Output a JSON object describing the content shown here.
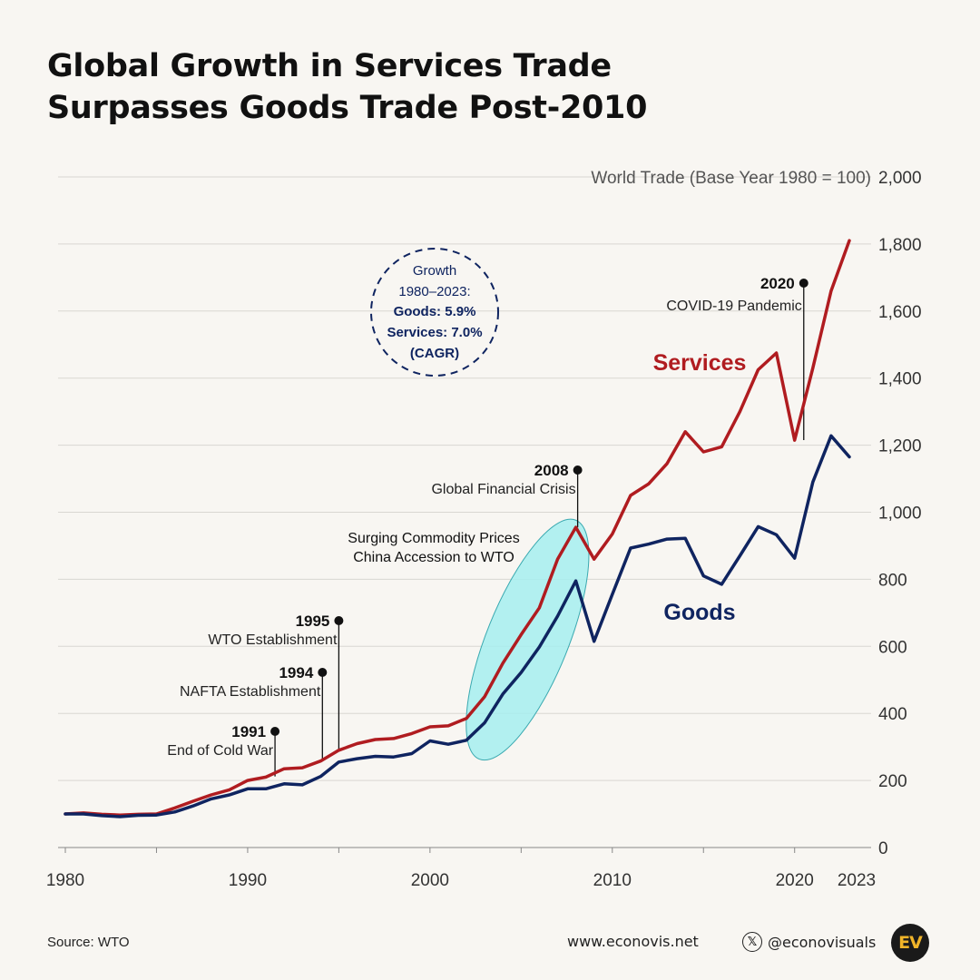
{
  "title": {
    "line1": "Global Growth in Services Trade",
    "line2": "Surpasses Goods Trade Post-2010"
  },
  "footer": {
    "source": "Source: WTO",
    "website": "www.econovis.net",
    "handle": "@econovisuals",
    "x_icon": "x-logo-icon",
    "logo_text": "EV"
  },
  "colors": {
    "services": "#b01c20",
    "goods": "#0f2460",
    "highlight": "#a6eef0",
    "grid": "#d9d7d2",
    "background": "#f8f6f2"
  },
  "chart_data": {
    "type": "line",
    "ylabel": "World Trade (Base Year 1980 = 100)",
    "ylim": [
      0,
      2000
    ],
    "yticks": [
      0,
      200,
      400,
      600,
      800,
      1000,
      1200,
      1400,
      1600,
      1800,
      2000
    ],
    "ytick_labels": [
      "0",
      "200",
      "400",
      "600",
      "800",
      "1,000",
      "1,200",
      "1,400",
      "1,600",
      "1,800",
      "2,000"
    ],
    "xlim": [
      1980,
      2023
    ],
    "xtick_labels": [
      "1980",
      "1990",
      "2000",
      "2010",
      "2020",
      "2023"
    ],
    "xticks": [
      1980,
      1990,
      2000,
      2010,
      2020,
      2023
    ],
    "grid": true,
    "x": [
      1980,
      1981,
      1982,
      1983,
      1984,
      1985,
      1986,
      1987,
      1988,
      1989,
      1990,
      1991,
      1992,
      1993,
      1994,
      1995,
      1996,
      1997,
      1998,
      1999,
      2000,
      2001,
      2002,
      2003,
      2004,
      2005,
      2006,
      2007,
      2008,
      2009,
      2010,
      2011,
      2012,
      2013,
      2014,
      2015,
      2016,
      2017,
      2018,
      2019,
      2020,
      2021,
      2022,
      2023
    ],
    "series": [
      {
        "name": "Services",
        "values": [
          100,
          103,
          99,
          97,
          99,
          100,
          118,
          138,
          157,
          172,
          200,
          210,
          235,
          238,
          258,
          290,
          310,
          322,
          325,
          340,
          360,
          363,
          385,
          450,
          550,
          635,
          715,
          860,
          955,
          860,
          935,
          1050,
          1085,
          1145,
          1240,
          1180,
          1195,
          1300,
          1425,
          1475,
          1215,
          1430,
          1660,
          1810
        ]
      },
      {
        "name": "Goods",
        "values": [
          100,
          100,
          95,
          92,
          96,
          97,
          106,
          124,
          145,
          157,
          175,
          175,
          190,
          187,
          212,
          255,
          265,
          272,
          270,
          280,
          318,
          308,
          320,
          372,
          458,
          522,
          598,
          690,
          795,
          615,
          755,
          893,
          905,
          920,
          922,
          810,
          785,
          870,
          957,
          933,
          863,
          1090,
          1228,
          1165
        ]
      }
    ],
    "annotations": [
      {
        "year_label": "1991",
        "text": "End of Cold War"
      },
      {
        "year_label": "1994",
        "text": "NAFTA Establishment"
      },
      {
        "year_label": "1995",
        "text": "WTO Establishment"
      },
      {
        "year_label": "2008",
        "text": "Global Financial Crisis"
      },
      {
        "year_label": "2020",
        "text": "COVID-19 Pandemic"
      }
    ],
    "highlight_label": [
      "Surging Commodity Prices",
      "China Accession to WTO"
    ],
    "growth_box": [
      "Growth",
      "1980–2023:",
      "Goods: 5.9%",
      "Services: 7.0%",
      "(CAGR)"
    ]
  }
}
